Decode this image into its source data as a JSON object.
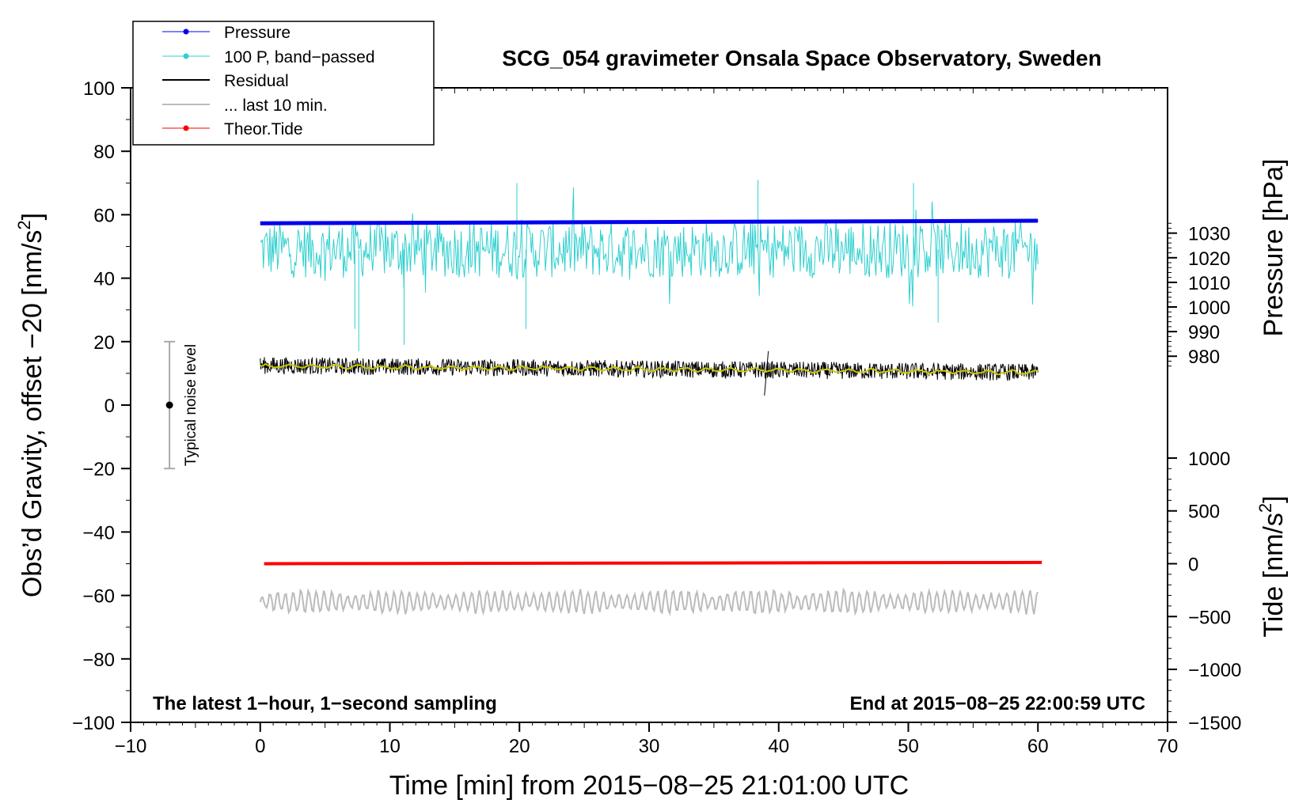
{
  "chart_data": {
    "type": "line",
    "title": "SCG_054 gravimeter Onsala Space Observatory, Sweden",
    "xlabel": "Time [min] from 2015−08−25 21:01:00 UTC",
    "ylabel_left": "Obs’d Gravity, offset −20 [nm/s",
    "ylabel_left_sup": "2",
    "ylabel_left_end": "]",
    "ylabel_pressure": "Pressure [hPa]",
    "ylabel_tide": "Tide [nm/s",
    "ylabel_tide_sup": "2",
    "ylabel_tide_end": "]",
    "xlim": [
      -10,
      70
    ],
    "ylim_left": [
      -100,
      100
    ],
    "x_ticks": [
      -10,
      0,
      10,
      20,
      30,
      40,
      50,
      60,
      70
    ],
    "x_tick_labels": [
      "−10",
      "0",
      "10",
      "20",
      "30",
      "40",
      "50",
      "60",
      "70"
    ],
    "y_left_ticks": [
      100,
      80,
      60,
      40,
      20,
      0,
      -20,
      -40,
      -60,
      -80,
      -100
    ],
    "y_left_tick_labels": [
      "100",
      "80",
      "60",
      "40",
      "20",
      "0",
      "−20",
      "−40",
      "−60",
      "−80",
      "−100"
    ],
    "pressure_ticks": [
      1030,
      1020,
      1010,
      1000,
      990,
      980
    ],
    "pressure_tick_labels": [
      "1030",
      "1020",
      "1010",
      "1000",
      "990",
      "980"
    ],
    "pressure_axis_map": {
      "left_value_at_980": 15.4,
      "left_per_hPa": 0.776
    },
    "tide_ticks": [
      1000,
      500,
      0,
      -500,
      -1000,
      -1500
    ],
    "tide_tick_labels": [
      "1000",
      "500",
      "0",
      "−500",
      "−1000",
      "−1500"
    ],
    "tide_axis_map": {
      "left_value_at_0": -50,
      "left_per_unit": 0.0333
    },
    "series": [
      {
        "name": "Pressure",
        "color": "#0000ee",
        "kind": "thick-line",
        "x_range": [
          0,
          60
        ],
        "left_start": 57.3,
        "left_end": 58.1
      },
      {
        "name": "100 P, band−passed",
        "color": "#2fcfcf",
        "kind": "noise",
        "x_range": [
          0,
          60
        ],
        "mean": 49,
        "amplitude": 9,
        "spikes": [
          [
            7.3,
            24
          ],
          [
            7.6,
            17
          ],
          [
            11.1,
            19
          ],
          [
            19.8,
            70
          ],
          [
            20.5,
            24
          ],
          [
            38.4,
            71
          ],
          [
            52.3,
            26
          ],
          [
            50.4,
            70
          ]
        ]
      },
      {
        "name": "Residual",
        "color": "#000000",
        "kind": "noise",
        "x_range": [
          0,
          60
        ],
        "left_start": 12.5,
        "left_end": 10.3,
        "amplitude": 2.7,
        "spikes": [
          [
            38.9,
            3
          ],
          [
            39.2,
            17
          ]
        ]
      },
      {
        "name": "... last 10 min.",
        "color": "#bbbbbb",
        "kind": "oscillation",
        "x_range": [
          0,
          60
        ],
        "mean": -62,
        "amplitude": 3.5
      },
      {
        "name": "Theor.Tide",
        "color": "#ff0000",
        "kind": "thick-line",
        "x_range": [
          0.3,
          60.3
        ],
        "left_start": -50.0,
        "left_end": -49.6
      },
      {
        "name": "Residual smoothed",
        "color": "#c8c800",
        "kind": "smooth",
        "x_range": [
          0,
          60
        ],
        "left_start": 12.3,
        "left_end": 10.3
      }
    ],
    "noise_bar": {
      "x": -7,
      "center": 0,
      "low": -20,
      "high": 20,
      "label": "Typical noise level"
    },
    "legend": [
      "Pressure",
      "100 P, band−passed",
      "Residual",
      "... last 10 min.",
      "Theor.Tide"
    ],
    "legend_placement": "top-left",
    "annotation_left": "The latest 1−hour, 1−second sampling",
    "annotation_right": "End at 2015−08−25 22:00:59 UTC",
    "grid": false
  }
}
